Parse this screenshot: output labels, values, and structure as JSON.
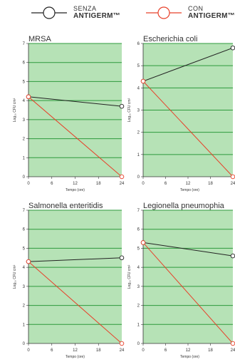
{
  "legend": {
    "items": [
      {
        "line1": "SENZA",
        "line2": "ANTIGERM™",
        "color": "#222222"
      },
      {
        "line1": "CON",
        "line2": "ANTIGERM™",
        "color": "#e8402a"
      }
    ]
  },
  "colors": {
    "plot_background": "#b6e2b6",
    "grid": "#2e9a3c",
    "senza": "#222222",
    "con": "#e8402a"
  },
  "chart_data": [
    {
      "type": "line",
      "title": "MRSA",
      "xlabel": "Tempo (ore)",
      "ylabel": "Log₁₀ CFU cm²",
      "x_ticks": [
        0,
        6,
        12,
        18,
        24
      ],
      "xlim": [
        0,
        24
      ],
      "ylim": [
        0,
        7
      ],
      "y_ticks": [
        0,
        1,
        2,
        3,
        4,
        5,
        6,
        7
      ],
      "series": [
        {
          "name": "SENZA ANTIGERM™",
          "x": [
            0,
            24
          ],
          "y": [
            4.2,
            3.7
          ]
        },
        {
          "name": "CON ANTIGERM™",
          "x": [
            0,
            24
          ],
          "y": [
            4.2,
            0
          ]
        }
      ]
    },
    {
      "type": "line",
      "title": "Escherichia coli",
      "xlabel": "Tempo (ore)",
      "ylabel": "Log₁₀ CFU cm²",
      "x_ticks": [
        0,
        6,
        12,
        18,
        24
      ],
      "xlim": [
        0,
        24
      ],
      "ylim": [
        0,
        6
      ],
      "y_ticks": [
        0,
        1,
        2,
        3,
        4,
        5,
        6
      ],
      "series": [
        {
          "name": "SENZA ANTIGERM™",
          "x": [
            0,
            24
          ],
          "y": [
            4.3,
            5.8
          ]
        },
        {
          "name": "CON ANTIGERM™",
          "x": [
            0,
            24
          ],
          "y": [
            4.3,
            0
          ]
        }
      ]
    },
    {
      "type": "line",
      "title": "Salmonella enteritidis",
      "xlabel": "Tempo (ore)",
      "ylabel": "Log₁₀ CFU cm²",
      "x_ticks": [
        0,
        6,
        12,
        18,
        24
      ],
      "xlim": [
        0,
        24
      ],
      "ylim": [
        0,
        7
      ],
      "y_ticks": [
        0,
        1,
        2,
        3,
        4,
        5,
        6,
        7
      ],
      "series": [
        {
          "name": "SENZA ANTIGERM™",
          "x": [
            0,
            24
          ],
          "y": [
            4.3,
            4.5
          ]
        },
        {
          "name": "CON ANTIGERM™",
          "x": [
            0,
            24
          ],
          "y": [
            4.3,
            0
          ]
        }
      ]
    },
    {
      "type": "line",
      "title": "Legionella pneumophia",
      "xlabel": "Tempo (ore)",
      "ylabel": "Log₁₀ CFU cm²",
      "x_ticks": [
        0,
        6,
        12,
        18,
        24
      ],
      "xlim": [
        0,
        24
      ],
      "ylim": [
        0,
        7
      ],
      "y_ticks": [
        0,
        1,
        2,
        3,
        4,
        5,
        6,
        7
      ],
      "series": [
        {
          "name": "SENZA ANTIGERM™",
          "x": [
            0,
            24
          ],
          "y": [
            5.3,
            4.6
          ]
        },
        {
          "name": "CON ANTIGERM™",
          "x": [
            0,
            24
          ],
          "y": [
            5.3,
            0
          ]
        }
      ]
    }
  ]
}
